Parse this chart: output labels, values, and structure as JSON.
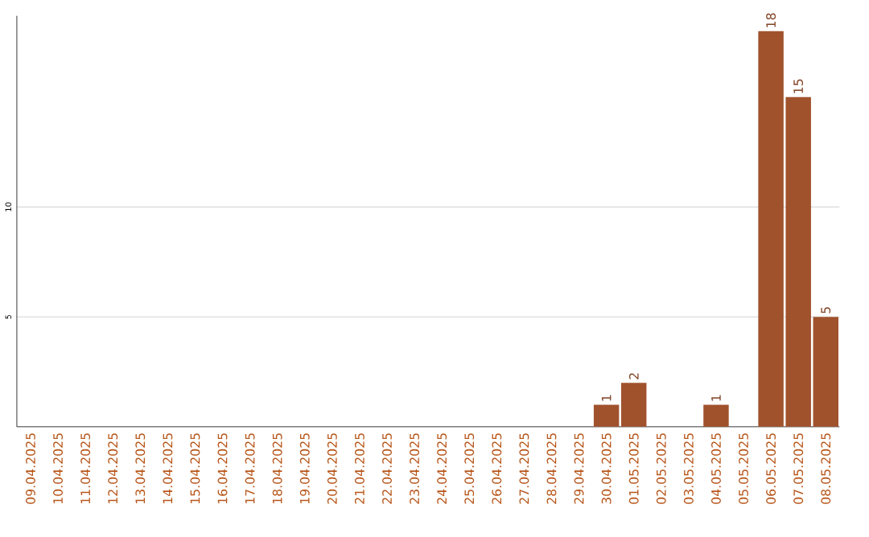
{
  "chart_data": {
    "type": "bar",
    "categories": [
      "09.04.2025",
      "10.04.2025",
      "11.04.2025",
      "12.04.2025",
      "13.04.2025",
      "14.04.2025",
      "15.04.2025",
      "16.04.2025",
      "17.04.2025",
      "18.04.2025",
      "19.04.2025",
      "20.04.2025",
      "21.04.2025",
      "22.04.2025",
      "23.04.2025",
      "24.04.2025",
      "25.04.2025",
      "26.04.2025",
      "27.04.2025",
      "28.04.2025",
      "29.04.2025",
      "30.04.2025",
      "01.05.2025",
      "02.05.2025",
      "03.05.2025",
      "04.05.2025",
      "05.05.2025",
      "06.05.2025",
      "07.05.2025",
      "08.05.2025"
    ],
    "values": [
      0,
      0,
      0,
      0,
      0,
      0,
      0,
      0,
      0,
      0,
      0,
      0,
      0,
      0,
      0,
      0,
      0,
      0,
      0,
      0,
      0,
      1,
      2,
      0,
      0,
      1,
      0,
      18,
      15,
      5
    ],
    "value_labels": [
      null,
      null,
      null,
      null,
      null,
      null,
      null,
      null,
      null,
      null,
      null,
      null,
      null,
      null,
      null,
      null,
      null,
      null,
      null,
      null,
      null,
      "1",
      "2",
      null,
      null,
      "1",
      null,
      "18",
      "15",
      "5"
    ],
    "color": "#a0522d",
    "ylim": [
      0,
      18.7
    ],
    "yticks": [
      5,
      10
    ],
    "grid": "y"
  }
}
